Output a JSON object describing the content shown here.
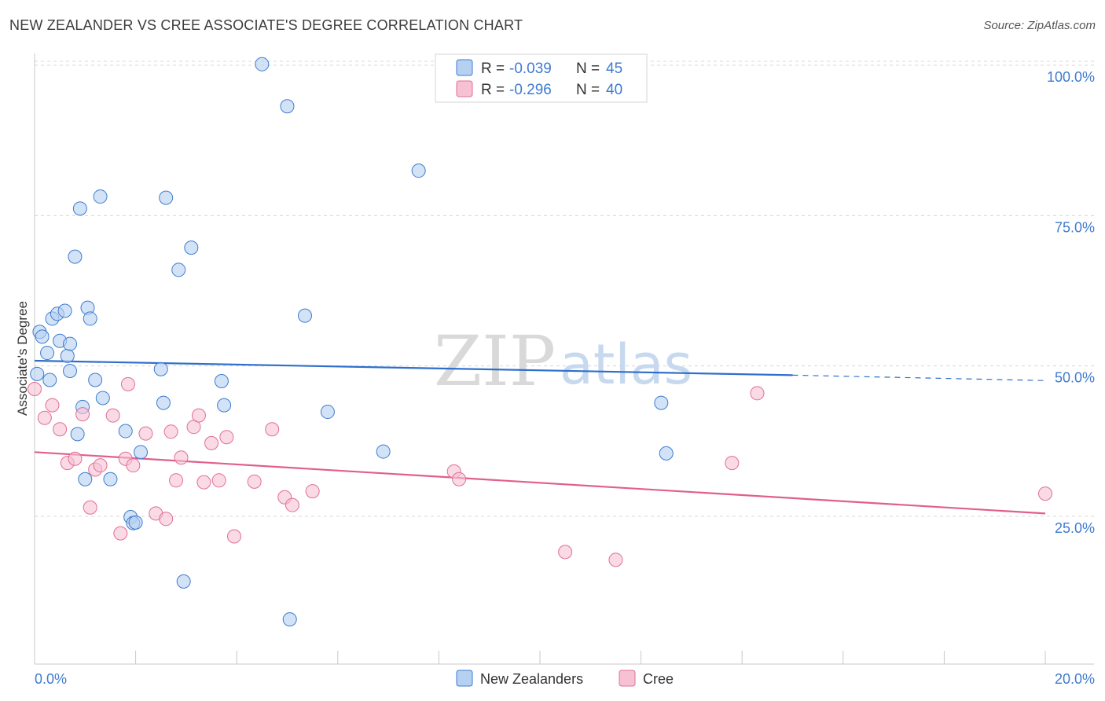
{
  "title": "NEW ZEALANDER VS CREE ASSOCIATE'S DEGREE CORRELATION CHART",
  "source": "Source: ZipAtlas.com",
  "watermark": {
    "zip": "ZIP",
    "atlas": "atlas"
  },
  "colors": {
    "blue": "#3f7bd0",
    "blue_fill": "#b6d0f2",
    "blue_line": "#2f6fcc",
    "pink": "#e06f97",
    "pink_fill": "#f6c2d3",
    "pink_line": "#e05f8e",
    "grid": "#d8d8d8"
  },
  "legend": {
    "rows": [
      {
        "r_label": "R =",
        "r_value": "-0.039",
        "n_label": "N =",
        "n_value": "45"
      },
      {
        "r_label": "R =",
        "r_value": "-0.296",
        "n_label": "N =",
        "n_value": "40"
      }
    ]
  },
  "bottom_legend": [
    "New Zealanders",
    "Cree"
  ],
  "chart_data": {
    "type": "scatter",
    "title": "NEW ZEALANDER VS CREE ASSOCIATE'S DEGREE CORRELATION CHART",
    "xlabel": "",
    "ylabel": "Associate's Degree",
    "xlim": [
      0,
      20
    ],
    "ylim": [
      0,
      100
    ],
    "x_tick_labels": [
      "0.0%",
      "20.0%"
    ],
    "y_tick_labels": [
      "100.0%",
      "75.0%",
      "50.0%",
      "25.0%"
    ],
    "y_ticks": [
      100,
      75,
      50,
      25
    ],
    "grid": true,
    "legend_position": "top-center",
    "series": [
      {
        "name": "New Zealanders",
        "r": -0.039,
        "n": 45,
        "trend": {
          "x": [
            0,
            15
          ],
          "y": [
            52.7,
            50.3
          ],
          "dashed_to": [
            20,
            49.4
          ]
        },
        "points": [
          [
            0.05,
            50.5
          ],
          [
            0.1,
            57.5
          ],
          [
            0.15,
            56.7
          ],
          [
            0.25,
            54.0
          ],
          [
            0.3,
            49.5
          ],
          [
            0.35,
            59.7
          ],
          [
            0.45,
            60.5
          ],
          [
            0.5,
            56.0
          ],
          [
            0.6,
            61.0
          ],
          [
            0.65,
            53.5
          ],
          [
            0.7,
            51.0
          ],
          [
            0.7,
            55.5
          ],
          [
            0.8,
            70.0
          ],
          [
            0.85,
            40.5
          ],
          [
            0.9,
            78.0
          ],
          [
            0.95,
            45.0
          ],
          [
            1.0,
            33.0
          ],
          [
            1.05,
            61.5
          ],
          [
            1.1,
            59.7
          ],
          [
            1.2,
            49.5
          ],
          [
            1.3,
            80.0
          ],
          [
            1.35,
            46.5
          ],
          [
            1.5,
            33.0
          ],
          [
            1.8,
            41.0
          ],
          [
            1.9,
            26.7
          ],
          [
            1.95,
            25.7
          ],
          [
            2.0,
            25.8
          ],
          [
            2.1,
            37.5
          ],
          [
            2.5,
            51.3
          ],
          [
            2.55,
            45.7
          ],
          [
            2.6,
            79.8
          ],
          [
            2.85,
            67.8
          ],
          [
            2.95,
            16.0
          ],
          [
            3.1,
            71.5
          ],
          [
            3.7,
            49.3
          ],
          [
            3.75,
            45.3
          ],
          [
            4.5,
            102.0
          ],
          [
            5.0,
            95.0
          ],
          [
            5.05,
            9.7
          ],
          [
            5.35,
            60.2
          ],
          [
            5.8,
            44.2
          ],
          [
            6.9,
            37.6
          ],
          [
            7.6,
            84.3
          ],
          [
            12.4,
            45.7
          ],
          [
            12.5,
            37.3
          ]
        ]
      },
      {
        "name": "Cree",
        "r": -0.296,
        "n": 40,
        "trend": {
          "x": [
            0,
            20
          ],
          "y": [
            37.5,
            27.3
          ]
        },
        "points": [
          [
            0.0,
            48.0
          ],
          [
            0.2,
            43.2
          ],
          [
            0.35,
            45.3
          ],
          [
            0.5,
            41.3
          ],
          [
            0.65,
            35.7
          ],
          [
            0.8,
            36.4
          ],
          [
            0.95,
            43.8
          ],
          [
            1.1,
            28.3
          ],
          [
            1.2,
            34.6
          ],
          [
            1.3,
            35.3
          ],
          [
            1.55,
            43.6
          ],
          [
            1.7,
            24.0
          ],
          [
            1.8,
            36.4
          ],
          [
            1.85,
            48.8
          ],
          [
            1.95,
            35.3
          ],
          [
            2.2,
            40.6
          ],
          [
            2.4,
            27.3
          ],
          [
            2.6,
            26.4
          ],
          [
            2.7,
            40.9
          ],
          [
            2.8,
            32.8
          ],
          [
            2.9,
            36.6
          ],
          [
            3.15,
            41.7
          ],
          [
            3.25,
            43.6
          ],
          [
            3.35,
            32.5
          ],
          [
            3.5,
            39.0
          ],
          [
            3.65,
            32.8
          ],
          [
            3.8,
            40.0
          ],
          [
            3.95,
            23.5
          ],
          [
            4.35,
            32.6
          ],
          [
            4.7,
            41.3
          ],
          [
            4.95,
            30.0
          ],
          [
            5.1,
            28.7
          ],
          [
            5.5,
            31.0
          ],
          [
            8.3,
            34.3
          ],
          [
            8.4,
            33.0
          ],
          [
            10.5,
            20.9
          ],
          [
            11.5,
            19.6
          ],
          [
            13.8,
            35.7
          ],
          [
            14.3,
            47.3
          ],
          [
            20.0,
            30.6
          ]
        ]
      }
    ]
  }
}
